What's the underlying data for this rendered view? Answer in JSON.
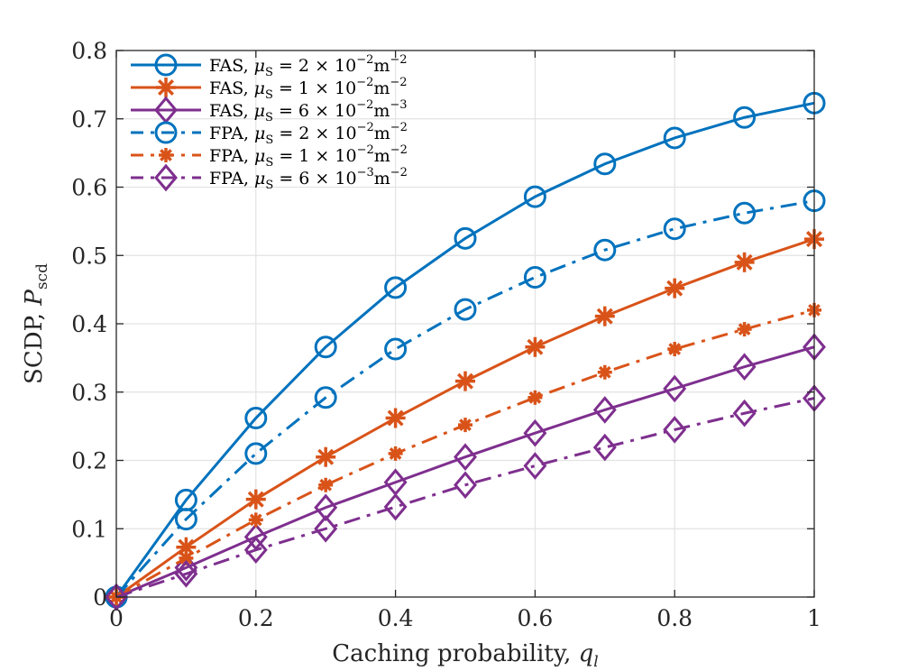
{
  "chart_data": {
    "type": "line",
    "title": "",
    "xlabel": "Caching probability, q_l",
    "xlabel_main": "Caching probability, ",
    "xlabel_var": "q",
    "xlabel_sub": "l",
    "ylabel": "SCDP, P_scd",
    "ylabel_main": "SCDP, ",
    "ylabel_var": "P",
    "ylabel_sub": "scd",
    "xlim": [
      0,
      1
    ],
    "ylim": [
      0,
      0.8
    ],
    "grid": true,
    "legend_position": "top-left",
    "x": [
      0,
      0.1,
      0.2,
      0.3,
      0.4,
      0.5,
      0.6,
      0.7,
      0.8,
      0.9,
      1.0
    ],
    "xticks": [
      0,
      0.2,
      0.4,
      0.6,
      0.8,
      1
    ],
    "xtick_labels": [
      "0",
      "0.2",
      "0.4",
      "0.6",
      "0.8",
      "1"
    ],
    "yticks": [
      0,
      0.1,
      0.2,
      0.3,
      0.4,
      0.5,
      0.6,
      0.7,
      0.8
    ],
    "ytick_labels": [
      "0",
      "0.1",
      "0.2",
      "0.3",
      "0.4",
      "0.5",
      "0.6",
      "0.7",
      "0.8"
    ],
    "series": [
      {
        "name": "FAS, μS = 2 × 10^-2 m^-2",
        "scheme": "FAS",
        "coef": "2",
        "exp1": "−2",
        "exp2": "−2",
        "color": "#0072BD",
        "linestyle": "solid",
        "marker": "circle",
        "values": [
          0,
          0.142,
          0.262,
          0.366,
          0.453,
          0.525,
          0.586,
          0.634,
          0.672,
          0.702,
          0.723
        ]
      },
      {
        "name": "FAS, μS = 1 × 10^-2 m^-2",
        "scheme": "FAS",
        "coef": "1",
        "exp1": "−2",
        "exp2": "−2",
        "color": "#D95319",
        "linestyle": "solid",
        "marker": "asterisk",
        "values": [
          0,
          0.073,
          0.143,
          0.205,
          0.262,
          0.316,
          0.366,
          0.411,
          0.452,
          0.49,
          0.524
        ]
      },
      {
        "name": "FAS, μS = 6 × 10^-2 m^-3",
        "scheme": "FAS",
        "coef": "6",
        "exp1": "−2",
        "exp2": "−3",
        "color": "#7E2F8E",
        "linestyle": "solid",
        "marker": "diamond",
        "values": [
          0,
          0.043,
          0.088,
          0.131,
          0.168,
          0.205,
          0.24,
          0.274,
          0.305,
          0.337,
          0.366
        ]
      },
      {
        "name": "FPA, μS = 2 × 10^-2 m^-2",
        "scheme": "FPA",
        "coef": "2",
        "exp1": "−2",
        "exp2": "−2",
        "color": "#0072BD",
        "linestyle": "dashdot",
        "marker": "circle",
        "values": [
          0,
          0.114,
          0.21,
          0.292,
          0.363,
          0.421,
          0.468,
          0.508,
          0.539,
          0.562,
          0.58
        ]
      },
      {
        "name": "FPA, μS = 1 × 10^-2 m^-2",
        "scheme": "FPA",
        "coef": "1",
        "exp1": "−2",
        "exp2": "−2",
        "color": "#D95319",
        "linestyle": "dashdot",
        "marker": "asterisk",
        "values": [
          0,
          0.057,
          0.113,
          0.164,
          0.21,
          0.252,
          0.292,
          0.329,
          0.363,
          0.392,
          0.42
        ]
      },
      {
        "name": "FPA, μS = 6 × 10^-3 m^-2",
        "scheme": "FPA",
        "coef": "6",
        "exp1": "−3",
        "exp2": "−2",
        "color": "#7E2F8E",
        "linestyle": "dashdot",
        "marker": "diamond",
        "values": [
          0,
          0.034,
          0.069,
          0.1,
          0.132,
          0.164,
          0.192,
          0.219,
          0.245,
          0.269,
          0.291
        ]
      }
    ]
  }
}
